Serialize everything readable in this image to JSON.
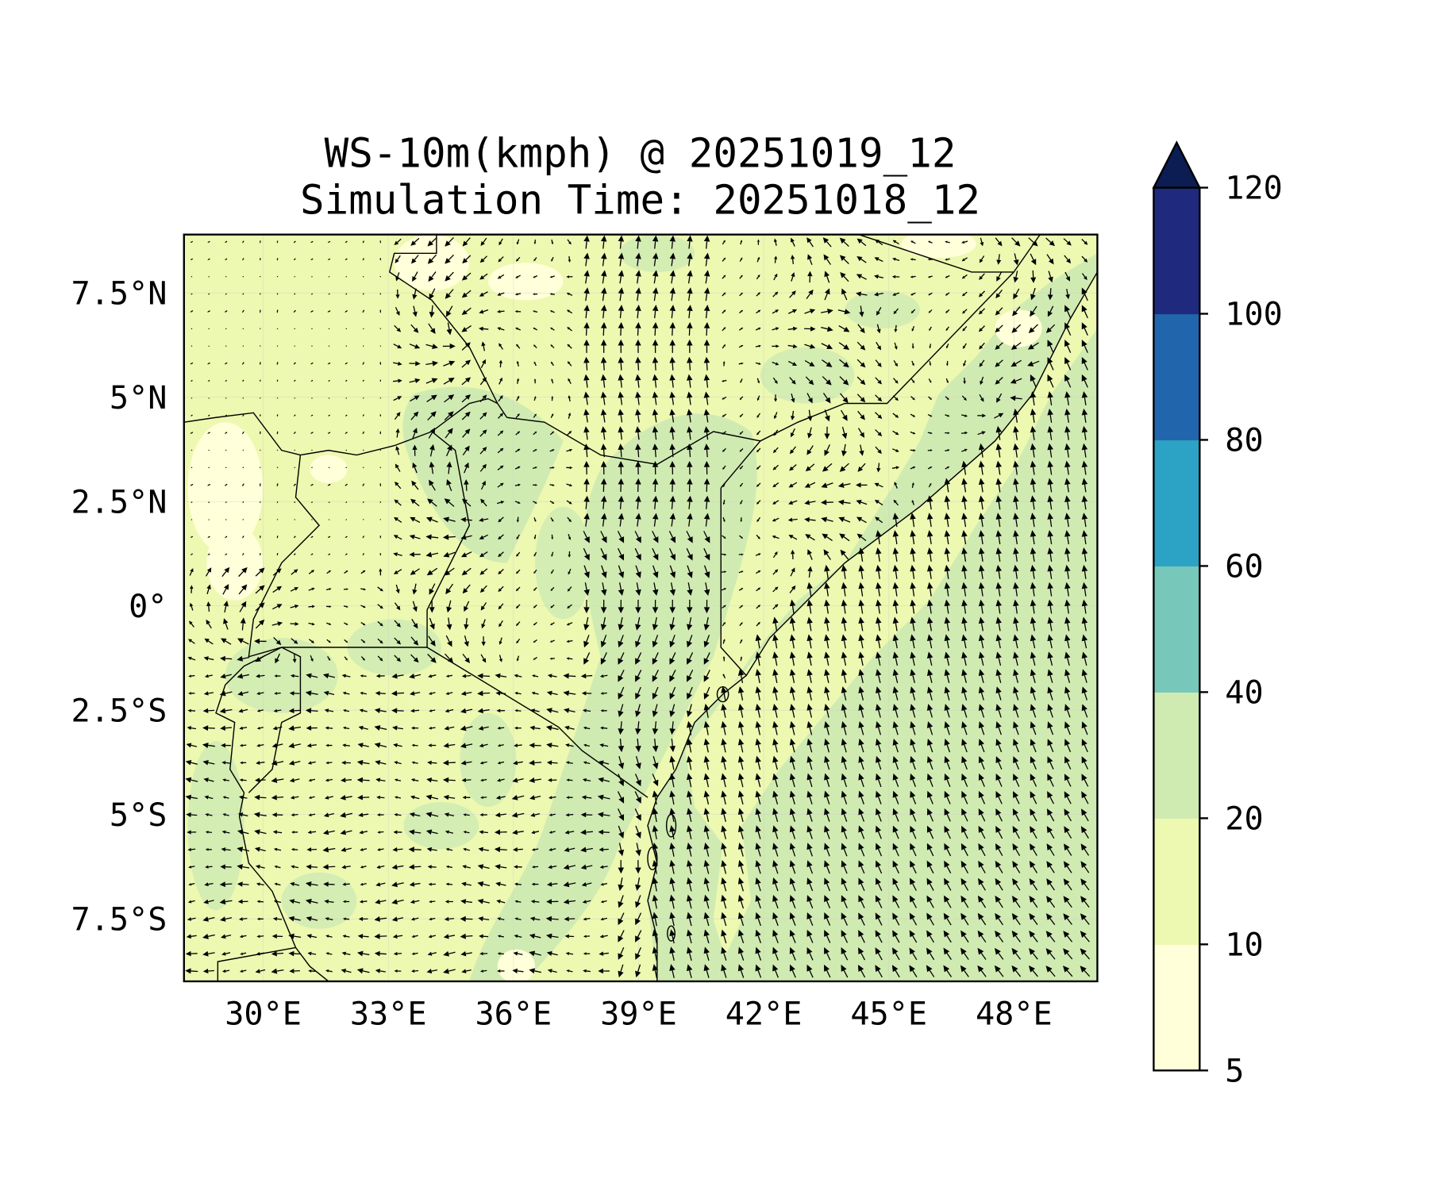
{
  "chart_data": {
    "type": "heatmap",
    "subtype": "filled-contour-with-wind-vectors",
    "title": [
      "WS-10m(kmph) @ 20251019_12",
      "Simulation Time: 20251018_12"
    ],
    "variable": "10 m wind speed (km/h)",
    "xlim": [
      28.1,
      50.0
    ],
    "ylim": [
      -9.0,
      8.9
    ],
    "xticks": [
      30,
      33,
      36,
      39,
      42,
      45,
      48
    ],
    "xtick_labels": [
      "30°E",
      "33°E",
      "36°E",
      "39°E",
      "42°E",
      "45°E",
      "48°E"
    ],
    "yticks": [
      7.5,
      5,
      2.5,
      0,
      -2.5,
      -5,
      -7.5
    ],
    "ytick_labels": [
      "7.5°N",
      "5°N",
      "2.5°N",
      "0°",
      "2.5°S",
      "5°S",
      "7.5°S"
    ],
    "grid": true,
    "colorbar": {
      "levels": [
        5,
        10,
        20,
        40,
        60,
        80,
        100,
        120
      ],
      "labels": [
        "5",
        "10",
        "20",
        "40",
        "60",
        "80",
        "100",
        "120"
      ],
      "colors": [
        "#ffffd9",
        "#edf8b1",
        "#d0ebb2",
        "#77c8ba",
        "#2ca3c4",
        "#2166ac",
        "#1f2a7f"
      ],
      "extend_color": "#0b1d52",
      "extend": "max",
      "placement": "right"
    },
    "field_summary": "Most of the domain is 10-20 km/h; 20-40 km/h over the Indian Ocean and in patches across Kenya and Tanzania. Wind vectors point north over the ocean and turn north-west to the south-east; easterlies over Tanzania."
  }
}
